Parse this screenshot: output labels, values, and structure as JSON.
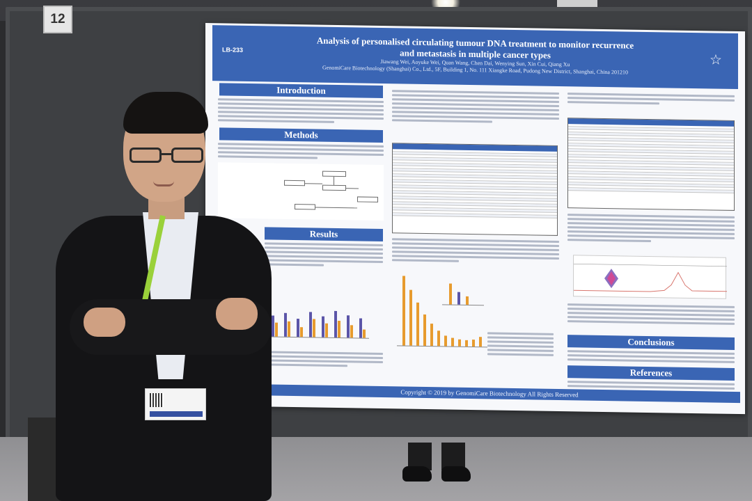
{
  "board_number": "12",
  "poster": {
    "code": "LB-233",
    "title_line1": "Analysis of personalised circulating tumour DNA treatment to monitor recurrence",
    "title_line2": "and metastasis in multiple cancer types",
    "authors": "Jiawang Wei, Aoyuke Wei, Quan Wang, Chen Dai, Wenying Sun, Xin Cui, Qiang Xu",
    "affiliation": "GenomiCare Biotechnology (Shanghai) Co., Ltd., 5F, Building 1, No. 111 Xiangke Road, Pudong New District, Shanghai, China 201210",
    "sections": {
      "introduction": "Introduction",
      "methods": "Methods",
      "results": "Results",
      "conclusions": "Conclusions",
      "references": "References"
    },
    "footer": "Copyright © 2019 by GenomiCare Biotechnology All Rights Reserved",
    "colors": {
      "header_blue": "#3a65b4",
      "bar_orange": "#e79b2e",
      "bar_purple": "#5b55a8"
    }
  }
}
